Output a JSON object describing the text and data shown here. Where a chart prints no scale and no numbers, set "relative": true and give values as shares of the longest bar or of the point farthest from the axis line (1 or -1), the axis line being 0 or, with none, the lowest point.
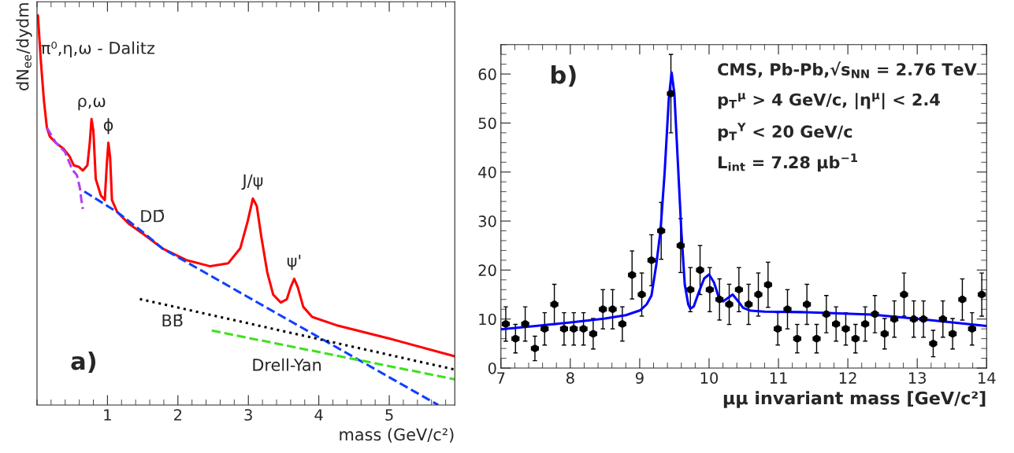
{
  "chart_data": [
    {
      "type": "line",
      "relative": true,
      "xlim": [
        0,
        5.93
      ],
      "xticks": [
        1,
        2,
        3,
        4,
        5
      ],
      "xlabel": "mass (GeV/c²)",
      "ylabel": "dN$_{ee}$/dydm",
      "series": [
        {
          "color": "#ff0000",
          "line_style": "solid",
          "x": [
            0.013,
            0.055,
            0.098,
            0.14,
            0.183,
            0.268,
            0.374,
            0.46,
            0.523,
            0.596,
            0.651,
            0.715,
            0.749,
            0.774,
            0.8,
            0.834,
            0.906,
            0.962,
            0.991,
            1.013,
            1.038,
            1.064,
            1.14,
            1.311,
            1.523,
            1.779,
            2.119,
            2.46,
            2.715,
            2.885,
            2.991,
            3.064,
            3.119,
            3.183,
            3.268,
            3.353,
            3.46,
            3.545,
            3.6,
            3.651,
            3.702,
            3.779,
            3.906,
            4.247,
            5.013,
            5.928
          ],
          "values": [
            1.0,
            0.882,
            0.782,
            0.712,
            0.689,
            0.673,
            0.658,
            0.639,
            0.615,
            0.611,
            0.602,
            0.615,
            0.673,
            0.734,
            0.704,
            0.58,
            0.538,
            0.526,
            0.619,
            0.673,
            0.635,
            0.526,
            0.495,
            0.464,
            0.437,
            0.402,
            0.372,
            0.356,
            0.364,
            0.402,
            0.472,
            0.53,
            0.511,
            0.433,
            0.341,
            0.283,
            0.263,
            0.271,
            0.302,
            0.324,
            0.302,
            0.252,
            0.226,
            0.205,
            0.17,
            0.125
          ]
        },
        {
          "color": "#b040f0",
          "line_style": "dashed",
          "x": [
            0.14,
            0.268,
            0.396,
            0.502,
            0.566,
            0.609,
            0.63,
            0.651
          ],
          "values": [
            0.712,
            0.673,
            0.65,
            0.604,
            0.59,
            0.557,
            0.526,
            0.503
          ]
        },
        {
          "color": "#1040ff",
          "line_style": "dashed",
          "x": [
            0.672,
            1.14,
            1.523,
            1.779,
            5.694
          ],
          "values": [
            0.548,
            0.495,
            0.441,
            0.402,
            0.0
          ]
        },
        {
          "color": "#000000",
          "line_style": "dotted",
          "x": [
            1.46,
            5.928
          ],
          "values": [
            0.272,
            0.091
          ]
        },
        {
          "color": "#40e020",
          "line_style": "dashed",
          "x": [
            2.481,
            5.928
          ],
          "values": [
            0.191,
            0.066
          ]
        }
      ],
      "annotations": [
        {
          "text": "ρ,ω",
          "x": 0.774,
          "y": 0.734
        },
        {
          "text": "ϕ",
          "x": 1.013,
          "y": 0.673
        },
        {
          "text": "J/ψ",
          "x": 3.064,
          "y": 0.53
        },
        {
          "text": "ψ'",
          "x": 3.651,
          "y": 0.324
        },
        "π⁰,η,ω - Dalitz",
        "DD̄",
        "BB̄",
        "Drell-Yan",
        "a)"
      ]
    },
    {
      "type": "scatter",
      "xlim": [
        7,
        14
      ],
      "xticks": [
        7,
        8,
        9,
        10,
        11,
        12,
        13,
        14
      ],
      "ylim": [
        0,
        66
      ],
      "yticks": [
        0,
        10,
        20,
        30,
        40,
        50,
        60
      ],
      "xlabel": "μμ invariant mass [GeV/c²]",
      "series": [
        {
          "type": "scatter",
          "color": "#000000",
          "marker": "circle",
          "x": [
            7.07,
            7.21,
            7.35,
            7.49,
            7.63,
            7.77,
            7.91,
            8.05,
            8.19,
            8.33,
            8.47,
            8.61,
            8.75,
            8.89,
            9.03,
            9.17,
            9.31,
            9.45,
            9.59,
            9.73,
            9.87,
            10.01,
            10.15,
            10.29,
            10.43,
            10.57,
            10.71,
            10.85,
            10.99,
            11.13,
            11.27,
            11.41,
            11.55,
            11.69,
            11.83,
            11.97,
            12.11,
            12.25,
            12.39,
            12.53,
            12.67,
            12.81,
            12.95,
            13.09,
            13.23,
            13.37,
            13.51,
            13.65,
            13.79,
            13.93
          ],
          "values": [
            9,
            6,
            9,
            4,
            8,
            13,
            8,
            8,
            8,
            7,
            12,
            12,
            9,
            19,
            15,
            22,
            28,
            56,
            25,
            16,
            20,
            16,
            14,
            13,
            16,
            13,
            15,
            17,
            8,
            12,
            6,
            13,
            6,
            11,
            9,
            8,
            6,
            9,
            11,
            7,
            10,
            15,
            10,
            10,
            5,
            10,
            7,
            14,
            8,
            15
          ],
          "errors": [
            3.5,
            2.9,
            3.5,
            2.5,
            3.3,
            4.1,
            3.3,
            3.3,
            3.3,
            3.1,
            4.0,
            4.0,
            3.5,
            4.9,
            4.4,
            5.2,
            5.8,
            8.0,
            5.5,
            4.5,
            5.0,
            4.5,
            4.2,
            4.1,
            4.5,
            4.1,
            4.4,
            4.6,
            3.3,
            4.0,
            2.9,
            4.1,
            2.9,
            3.8,
            3.5,
            3.3,
            2.9,
            3.5,
            3.8,
            3.1,
            3.7,
            4.4,
            3.7,
            3.7,
            2.7,
            3.7,
            3.1,
            4.2,
            3.3,
            4.4
          ],
          "xerrors": [
            0.05,
            0.05,
            0.05,
            0.05,
            0.05,
            0.05,
            0.05,
            0.05,
            0.05,
            0.05,
            0.05,
            0.05,
            0.05,
            0.05,
            0.05,
            0.05,
            0.05,
            0.05,
            0.05,
            0.05,
            0.05,
            0.05,
            0.05,
            0.05,
            0.05,
            0.05,
            0.05,
            0.05,
            0.05,
            0.05,
            0.05,
            0.05,
            0.05,
            0.05,
            0.05,
            0.05,
            0.05,
            0.05,
            0.05,
            0.05,
            0.05,
            0.05,
            0.05,
            0.05,
            0.05,
            0.05,
            0.05,
            0.05,
            0.05,
            0.05
          ]
        },
        {
          "type": "line",
          "color": "#0000ff",
          "line_style": "solid",
          "x": [
            7.0,
            7.5,
            8.0,
            8.5,
            8.8,
            9.01,
            9.1,
            9.17,
            9.24,
            9.3,
            9.36,
            9.42,
            9.46,
            9.5,
            9.55,
            9.6,
            9.65,
            9.7,
            9.73,
            9.78,
            9.85,
            9.93,
            10.0,
            10.07,
            10.15,
            10.2,
            10.27,
            10.34,
            10.41,
            10.49,
            10.6,
            10.8,
            11.4,
            12.35,
            13.1,
            14.0
          ],
          "values": [
            7.9,
            8.6,
            9.3,
            10.1,
            10.8,
            11.8,
            13,
            14.8,
            21.2,
            28,
            40,
            55,
            60.3,
            56,
            42,
            28,
            17,
            13,
            12.1,
            12.6,
            15.4,
            18.3,
            19.1,
            17.5,
            14,
            13.6,
            14.3,
            15,
            13.8,
            12.3,
            11.7,
            11.5,
            11.4,
            10.9,
            9.9,
            8.6
          ]
        }
      ],
      "annotations": [
        "b)",
        "CMS, Pb-Pb,√s$_{NN}$ = 2.76 TeV",
        "p$_{T}$$^{μ}$ > 4 GeV/c, |η$^{μ}$| < 2.4",
        "p$_{T}$$^{Υ}$ < 20 GeV/c",
        "L$_{int}$ = 7.28 μb$^{−1}$"
      ]
    }
  ]
}
